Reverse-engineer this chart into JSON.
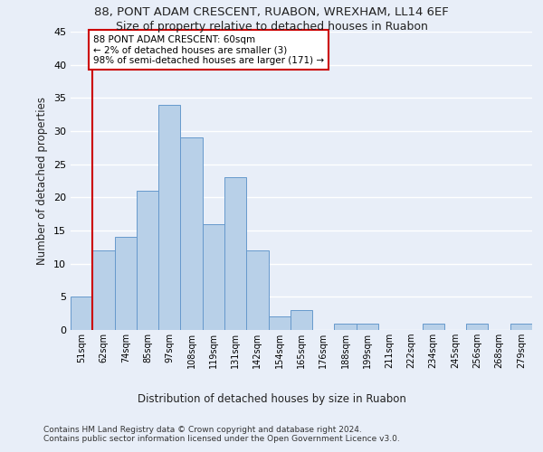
{
  "title1": "88, PONT ADAM CRESCENT, RUABON, WREXHAM, LL14 6EF",
  "title2": "Size of property relative to detached houses in Ruabon",
  "xlabel": "Distribution of detached houses by size in Ruabon",
  "ylabel": "Number of detached properties",
  "categories": [
    "51sqm",
    "62sqm",
    "74sqm",
    "85sqm",
    "97sqm",
    "108sqm",
    "119sqm",
    "131sqm",
    "142sqm",
    "154sqm",
    "165sqm",
    "176sqm",
    "188sqm",
    "199sqm",
    "211sqm",
    "222sqm",
    "234sqm",
    "245sqm",
    "256sqm",
    "268sqm",
    "279sqm"
  ],
  "values": [
    5,
    12,
    14,
    21,
    34,
    29,
    16,
    23,
    12,
    2,
    3,
    0,
    1,
    1,
    0,
    0,
    1,
    0,
    1,
    0,
    1
  ],
  "bar_color": "#b8d0e8",
  "bar_edge_color": "#6699cc",
  "annotation_text": "88 PONT ADAM CRESCENT: 60sqm\n← 2% of detached houses are smaller (3)\n98% of semi-detached houses are larger (171) →",
  "annotation_box_color": "#ffffff",
  "annotation_box_edge_color": "#cc0000",
  "vline_color": "#cc0000",
  "ylim": [
    0,
    45
  ],
  "yticks": [
    0,
    5,
    10,
    15,
    20,
    25,
    30,
    35,
    40,
    45
  ],
  "background_color": "#e8eef8",
  "grid_color": "#ffffff",
  "footer": "Contains HM Land Registry data © Crown copyright and database right 2024.\nContains public sector information licensed under the Open Government Licence v3.0.",
  "title1_fontsize": 9.5,
  "title2_fontsize": 9,
  "xlabel_fontsize": 8.5,
  "ylabel_fontsize": 8.5,
  "footer_fontsize": 6.5
}
